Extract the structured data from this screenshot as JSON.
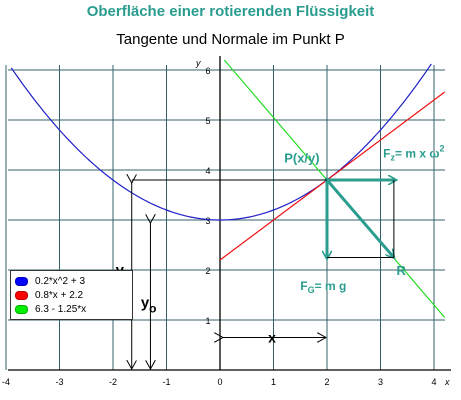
{
  "title": "Oberfläche einer rotierenden Flüssigkeit",
  "subtitle": "Tangente und Normale im Punkt P",
  "axes": {
    "x_name": "x",
    "y_name": "y",
    "x_ticks": [
      "-4",
      "-3",
      "-2",
      "-1",
      "0",
      "1",
      "2",
      "3",
      "4"
    ],
    "y_ticks": [
      "1",
      "2",
      "3",
      "4",
      "5",
      "6"
    ],
    "xlim": [
      -4,
      4.2
    ],
    "ylim": [
      0,
      6.2
    ],
    "grid": true
  },
  "legend": [
    {
      "label": "0.2*x^2 + 3",
      "color": "#0000ff"
    },
    {
      "label": "0.8*x + 2.2",
      "color": "#ff0000"
    },
    {
      "label": "6.3 - 1.25*x",
      "color": "#00ee00"
    }
  ],
  "colors": {
    "parabola": "#2020c8",
    "tangent": "#ee1111",
    "normal": "#22dd22",
    "vectors": "#2a9d8f",
    "grid": "#33606a"
  },
  "labels": {
    "point": "P(x/y)",
    "fz_main": "F",
    "fz_sub": "z",
    "fz_rest": "= m x ω",
    "fz_exp": "2",
    "fg_main": "F",
    "fg_sub": "G",
    "fg_rest": "= m g",
    "r": "R",
    "y": "y",
    "y0_main": "y",
    "y0_sub": "o",
    "x": "x"
  }
}
